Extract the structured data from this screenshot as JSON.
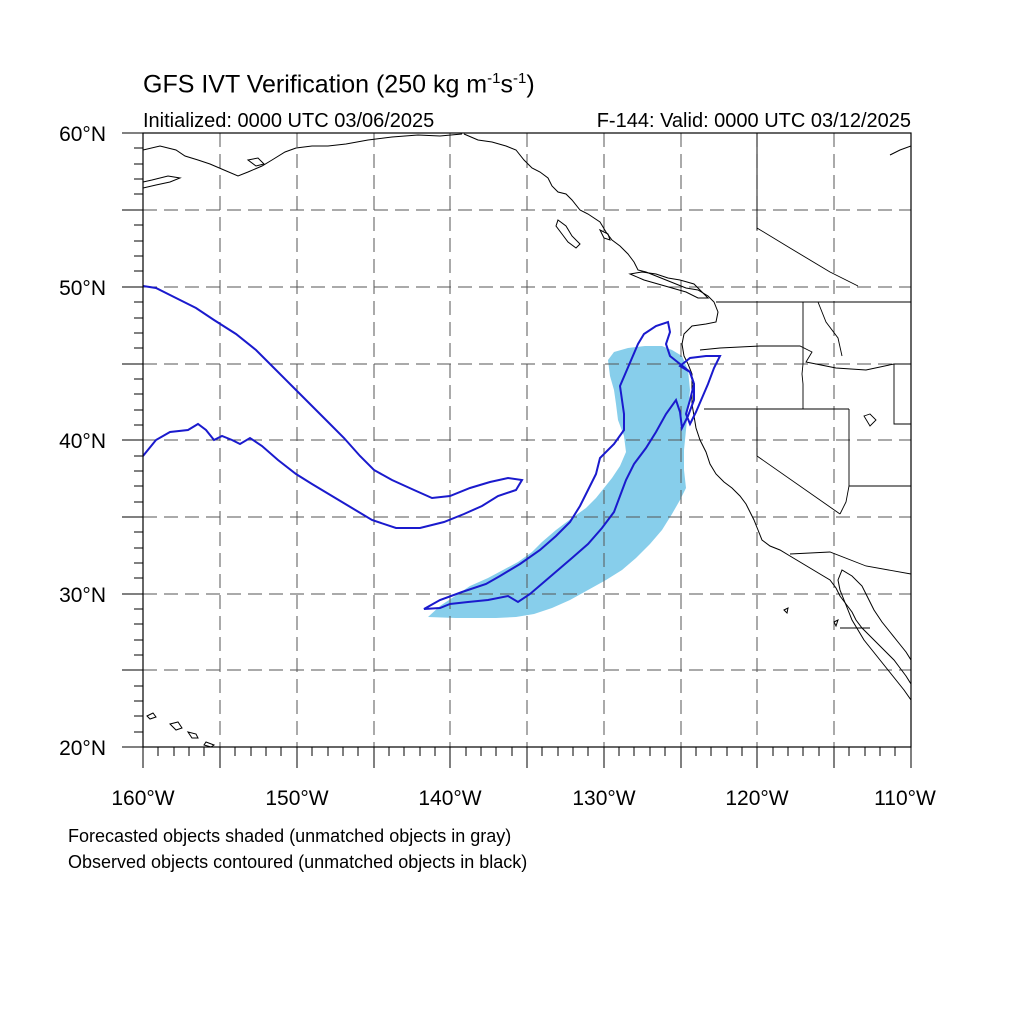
{
  "title": {
    "main": "GFS IVT Verification (250 kg m",
    "exp1": "-1",
    "mid": "s",
    "exp2": "-1",
    "end": ")"
  },
  "initialized": "Initialized: 0000 UTC 03/06/2025",
  "valid": "F-144: Valid: 0000 UTC 03/12/2025",
  "lat_labels": [
    "60°N",
    "50°N",
    "40°N",
    "30°N",
    "20°N"
  ],
  "lon_labels": [
    "160°W",
    "150°W",
    "140°W",
    "130°W",
    "120°W",
    "110°W"
  ],
  "notes": [
    "Forecasted objects shaded (unmatched objects in gray)",
    "Observed objects contoured (unmatched objects in black)"
  ],
  "colors": {
    "forecast_fill": "#87ceeb",
    "observed_contour": "#1a1acd",
    "coastline": "#000000",
    "grid": "#555555"
  },
  "map_extent": {
    "lon": [
      -160,
      -110
    ],
    "lat": [
      20,
      60
    ]
  }
}
